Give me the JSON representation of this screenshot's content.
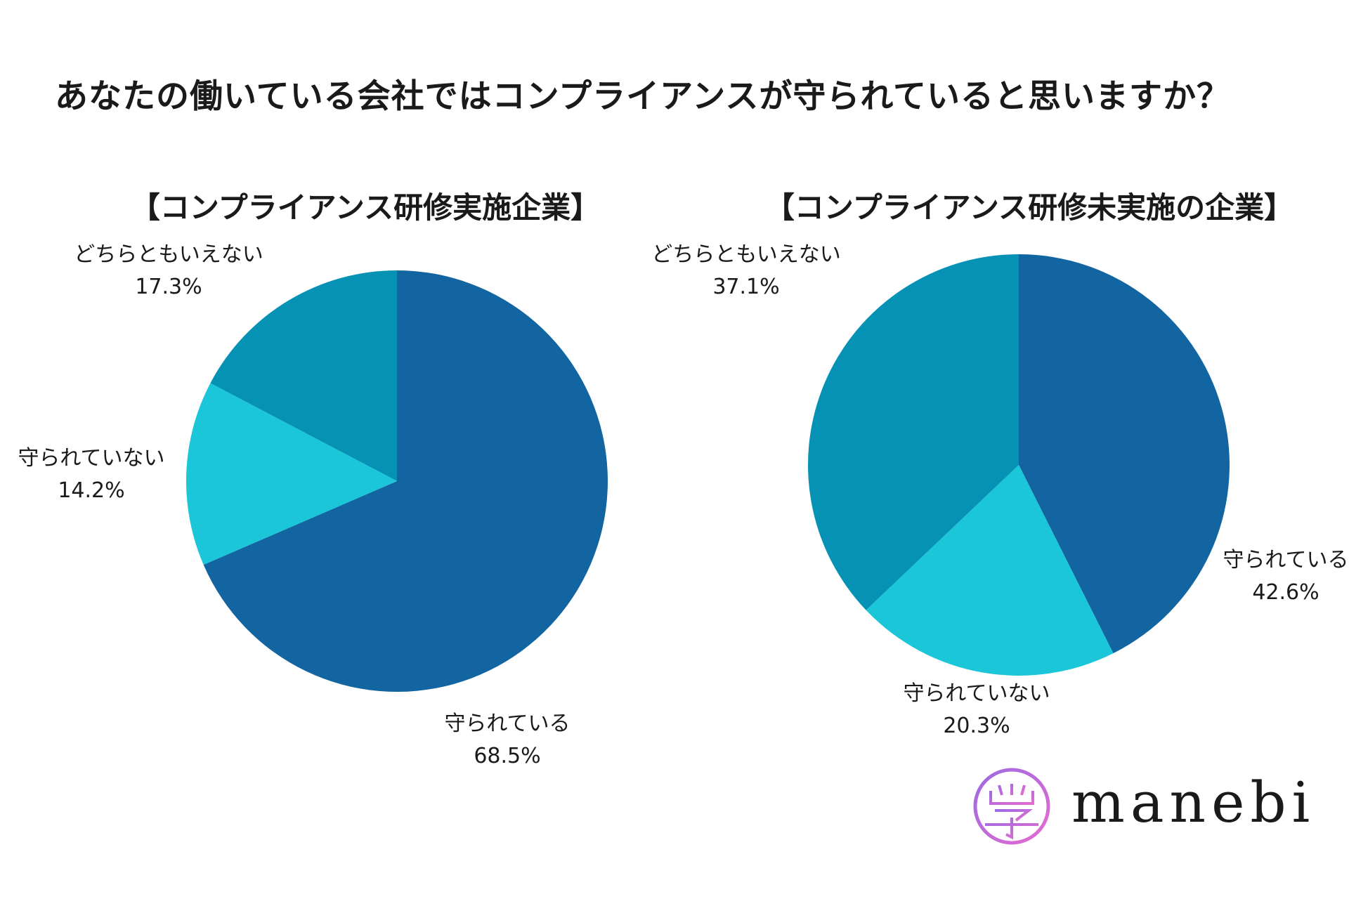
{
  "title": "あなたの働いている会社ではコンプライアンスが守られていると思いますか？",
  "brand": {
    "name": "manebi"
  },
  "colors": {
    "dark_blue": "#1265A1",
    "teal": "#0592B5",
    "cyan": "#1BC6D9",
    "logo_gradient_start": "#9B6BE3",
    "logo_gradient_end": "#E66BD0"
  },
  "chart_data": [
    {
      "type": "pie",
      "title": "【コンプライアンス研修実施企業】",
      "slices": [
        {
          "label": "守られている",
          "value": 68.5,
          "value_label": "68.5%",
          "color": "#1265A1"
        },
        {
          "label": "守られていない",
          "value": 14.2,
          "value_label": "14.2%",
          "color": "#1BC6D9"
        },
        {
          "label": "どちらともいえない",
          "value": 17.3,
          "value_label": "17.3%",
          "color": "#0592B5"
        }
      ]
    },
    {
      "type": "pie",
      "title": "【コンプライアンス研修未実施の企業】",
      "slices": [
        {
          "label": "守られている",
          "value": 42.6,
          "value_label": "42.6%",
          "color": "#1265A1"
        },
        {
          "label": "守られていない",
          "value": 20.3,
          "value_label": "20.3%",
          "color": "#1BC6D9"
        },
        {
          "label": "どちらともいえない",
          "value": 37.1,
          "value_label": "37.1%",
          "color": "#0592B5"
        }
      ]
    }
  ]
}
